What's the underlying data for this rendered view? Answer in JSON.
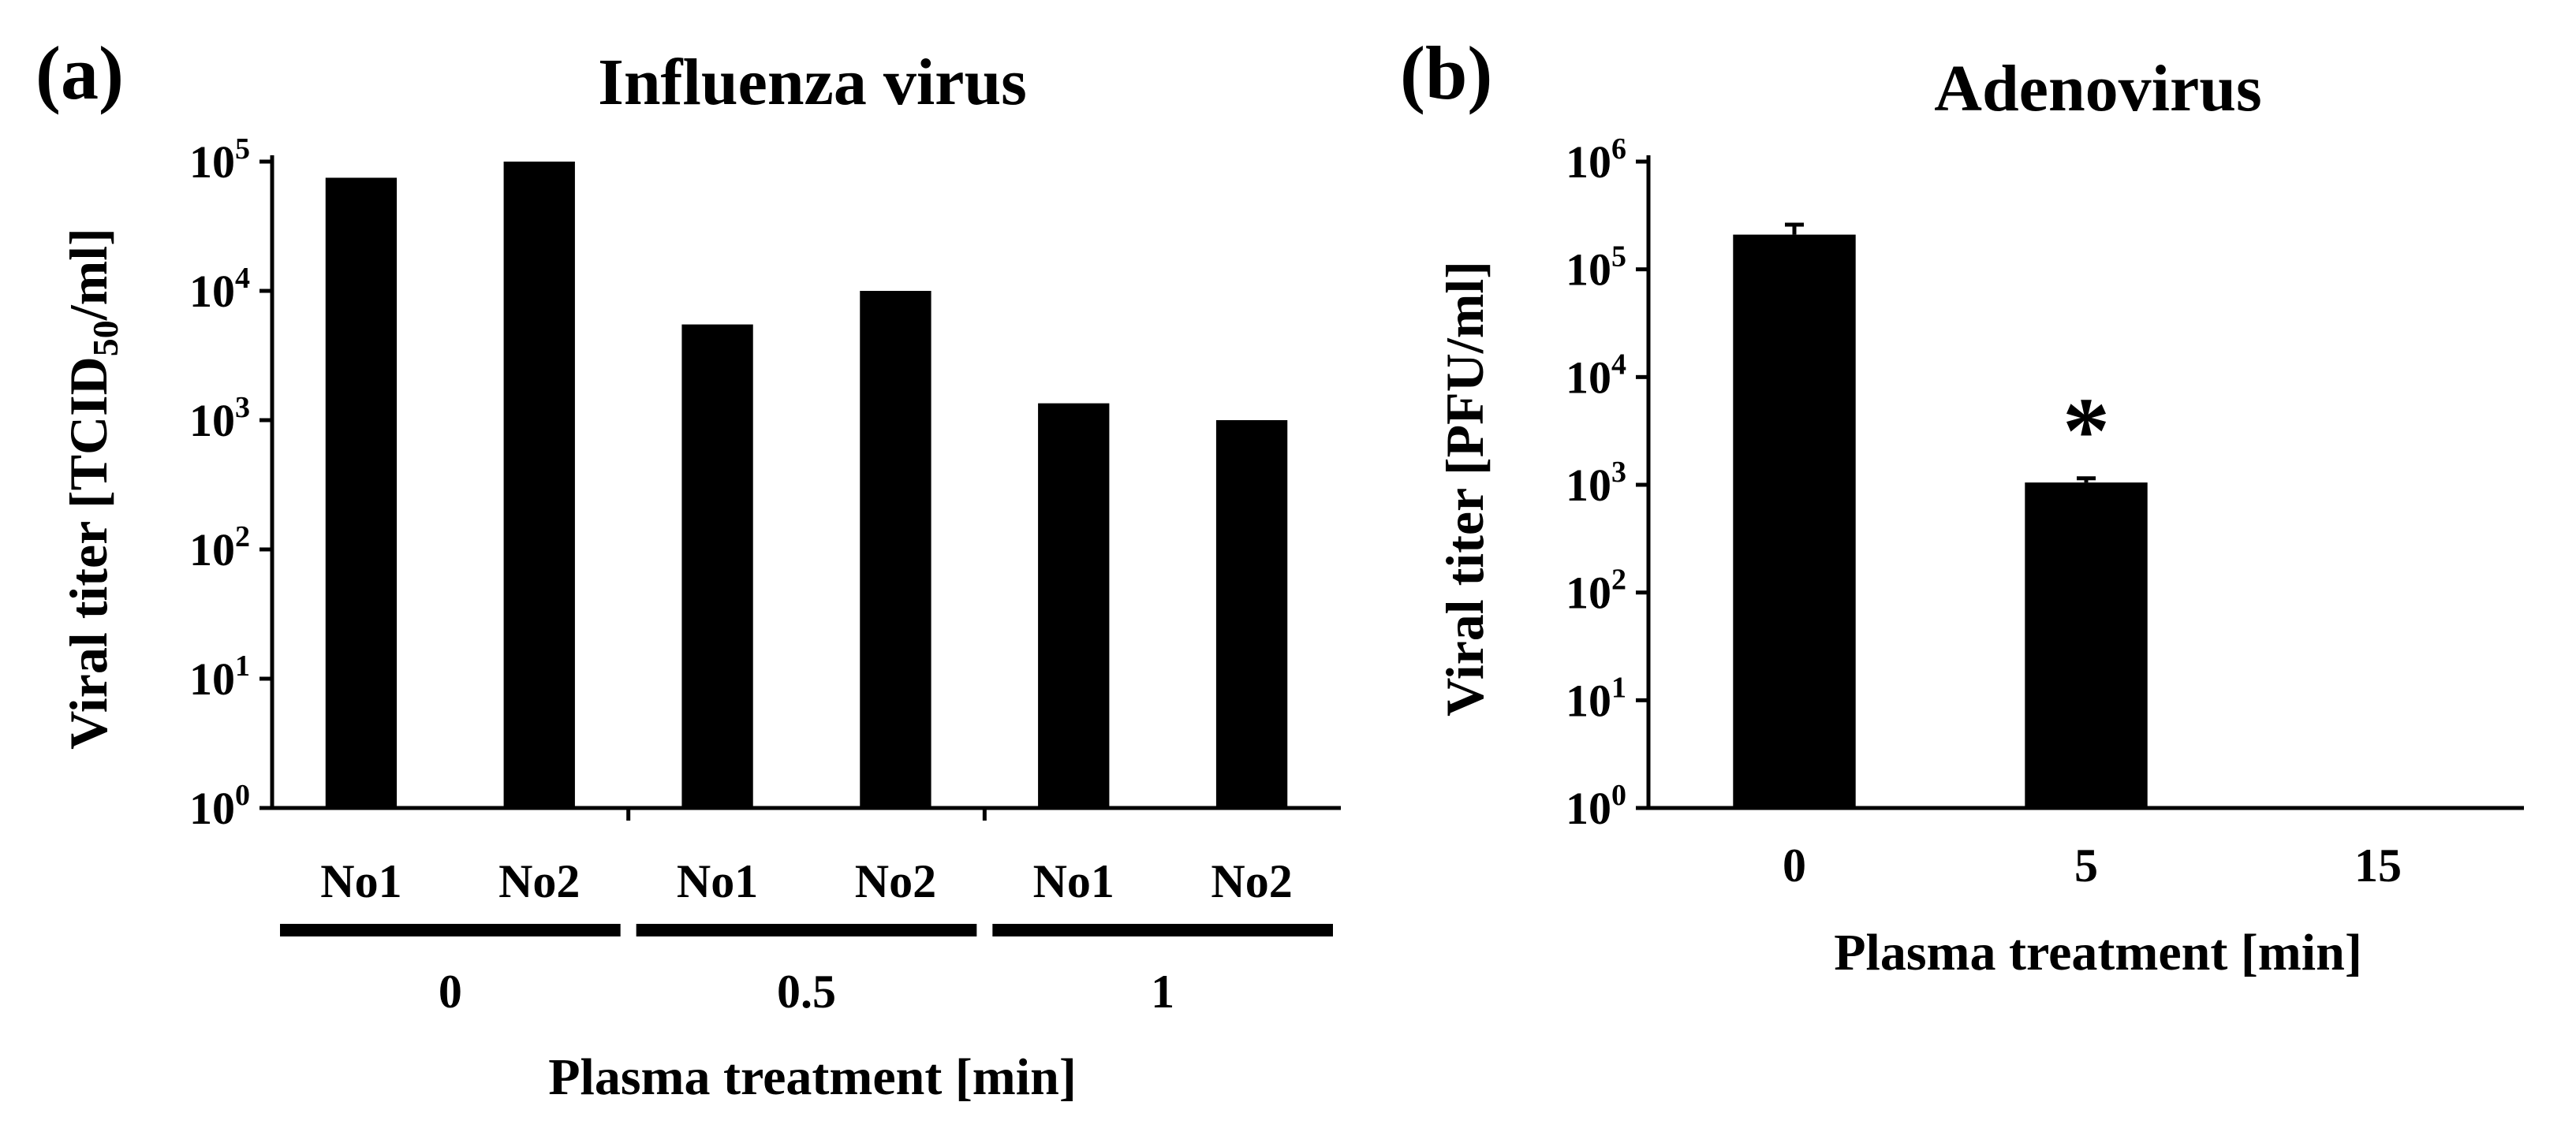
{
  "colors": {
    "bar": "#000000",
    "axis": "#000000",
    "background": "#ffffff"
  },
  "chart_data": [
    {
      "panel": "(a)",
      "type": "bar",
      "title": "Influenza virus",
      "ylabel": "Viral titer [TCID50/ml]",
      "ylabel_parts": {
        "before": "Viral titer [TCID",
        "sub": "50",
        "after": "/ml]"
      },
      "yscale": "log",
      "ylim": [
        1,
        100000
      ],
      "yticks": [
        {
          "base": "10",
          "exp": "0"
        },
        {
          "base": "10",
          "exp": "1"
        },
        {
          "base": "10",
          "exp": "2"
        },
        {
          "base": "10",
          "exp": "3"
        },
        {
          "base": "10",
          "exp": "4"
        },
        {
          "base": "10",
          "exp": "5"
        }
      ],
      "categories": [
        "No1",
        "No2",
        "No1",
        "No2",
        "No1",
        "No2"
      ],
      "groups": [
        {
          "label": "0",
          "categories": [
            "No1",
            "No2"
          ]
        },
        {
          "label": "0.5",
          "categories": [
            "No1",
            "No2"
          ]
        },
        {
          "label": "1",
          "categories": [
            "No1",
            "No2"
          ]
        }
      ],
      "values": [
        75000,
        100000,
        5500,
        10000,
        1350,
        1000
      ],
      "xlabel": "Plasma treatment [min]"
    },
    {
      "panel": "(b)",
      "type": "bar",
      "title": "Adenovirus",
      "ylabel": "Viral titer [PFU/ml]",
      "yscale": "log",
      "ylim": [
        1,
        1000000
      ],
      "yticks": [
        {
          "base": "10",
          "exp": "0"
        },
        {
          "base": "10",
          "exp": "1"
        },
        {
          "base": "10",
          "exp": "2"
        },
        {
          "base": "10",
          "exp": "3"
        },
        {
          "base": "10",
          "exp": "4"
        },
        {
          "base": "10",
          "exp": "5"
        },
        {
          "base": "10",
          "exp": "6"
        }
      ],
      "categories": [
        "0",
        "5",
        "15"
      ],
      "values": [
        210000,
        1050,
        null
      ],
      "error_plus": [
        50000,
        100,
        null
      ],
      "annotations": [
        {
          "category": "5",
          "text": "*"
        }
      ],
      "xlabel": "Plasma treatment [min]"
    }
  ]
}
